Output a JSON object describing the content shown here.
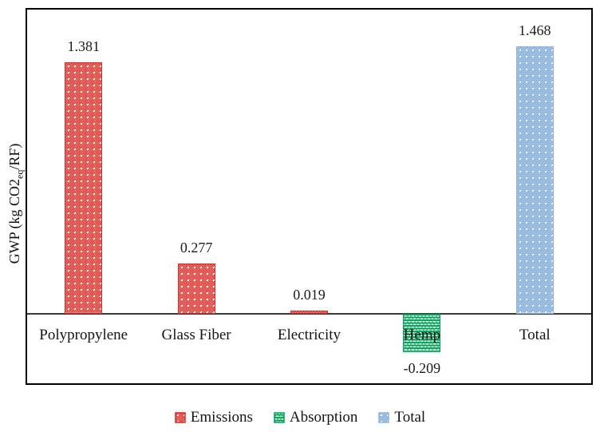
{
  "chart_data": {
    "type": "bar",
    "categories": [
      "Polypropylene",
      "Glass Fiber",
      "Electricity",
      "Hemp",
      "Total"
    ],
    "values": [
      1.381,
      0.277,
      0.019,
      -0.209,
      1.468
    ],
    "value_labels": [
      "1.381",
      "0.277",
      "0.019",
      "-0.209",
      "1.468"
    ],
    "bar_series": [
      "Emissions",
      "Emissions",
      "Emissions",
      "Absorption",
      "Total"
    ],
    "title": "",
    "xlabel": "",
    "ylabel": "GWP (kg CO2eq/RF)",
    "ylabel_parts": {
      "pre": "GWP (kg CO2",
      "sub": "eq",
      "post": "/RF)"
    },
    "ylim": [
      -0.382,
      1.671
    ],
    "grid": false,
    "legend": {
      "position": "bottom",
      "entries": [
        {
          "label": "Emissions",
          "color": "#e2261f",
          "pattern": "dotted-diamond"
        },
        {
          "label": "Absorption",
          "color": "#00a357",
          "pattern": "dashed-horizontal"
        },
        {
          "label": "Total",
          "color": "#7fa7de",
          "pattern": "dotted-checker"
        }
      ]
    },
    "colors": {
      "axis_line": "#3a3a3a",
      "frame": "#000000",
      "background": "#ffffff"
    }
  }
}
